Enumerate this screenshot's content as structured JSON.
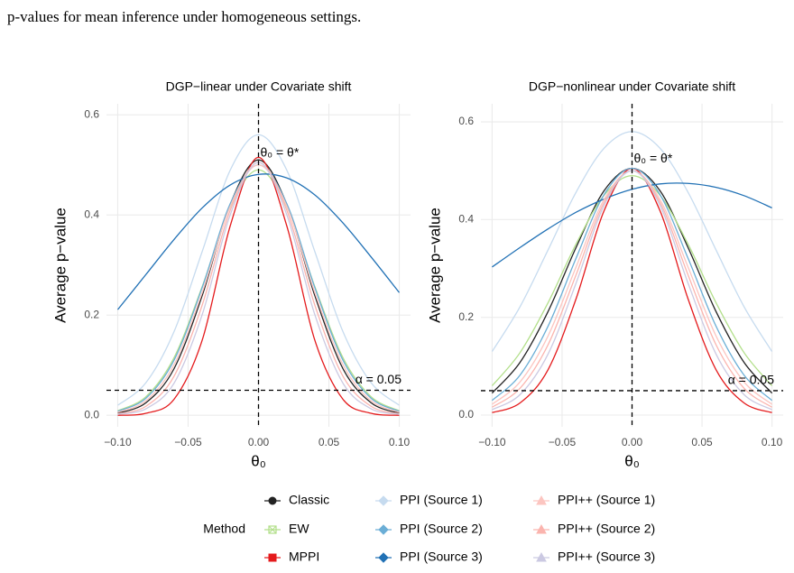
{
  "caption": "p-values for mean inference under homogeneous settings.",
  "legend": {
    "title": "Method",
    "position": "bottom"
  },
  "chart_data": [
    {
      "type": "line",
      "title": "DGP−linear under Covariate shift",
      "x_label": "θ₀",
      "y_label": "Average p−value",
      "x": [
        -0.1,
        -0.08,
        -0.06,
        -0.04,
        -0.02,
        0,
        0.02,
        0.04,
        0.06,
        0.08,
        0.1
      ],
      "xlim": [
        -0.108,
        0.108
      ],
      "ylim": [
        -0.023,
        0.622
      ],
      "xticks": [
        {
          "value": -0.1,
          "label": "−0.10"
        },
        {
          "value": -0.05,
          "label": "−0.05"
        },
        {
          "value": 0,
          "label": "0.00"
        },
        {
          "value": 0.05,
          "label": "0.05"
        },
        {
          "value": 0.1,
          "label": "0.10"
        }
      ],
      "yticks": [
        {
          "value": 0,
          "label": "0.0"
        },
        0.2,
        0.4,
        0.6
      ],
      "grid": true,
      "vline": {
        "value": 0,
        "label": "θ₀ = θ*"
      },
      "hline": {
        "value": 0.05,
        "label": "α = 0.05"
      },
      "series": [
        {
          "name": "Classic",
          "color": "#222222",
          "marker": "circle",
          "values": [
            0.004,
            0.025,
            0.093,
            0.239,
            0.422,
            0.51,
            0.422,
            0.239,
            0.093,
            0.025,
            0.004
          ]
        },
        {
          "name": "EW",
          "color": "#b2df8a",
          "marker": "square-cross",
          "values": [
            0.009,
            0.037,
            0.115,
            0.257,
            0.417,
            0.49,
            0.417,
            0.257,
            0.115,
            0.037,
            0.009
          ]
        },
        {
          "name": "MPPI",
          "color": "#e41a1c",
          "marker": "square",
          "values": [
            0,
            0.004,
            0.032,
            0.15,
            0.379,
            0.515,
            0.379,
            0.15,
            0.032,
            0.004,
            0
          ]
        },
        {
          "name": "PPI (Source 1)",
          "color": "#c6dbef",
          "marker": "diamond",
          "values": [
            0.02,
            0.065,
            0.167,
            0.327,
            0.49,
            0.56,
            0.49,
            0.327,
            0.167,
            0.065,
            0.02
          ]
        },
        {
          "name": "PPI (Source 2)",
          "color": "#6baed6",
          "marker": "diamond",
          "values": [
            0.008,
            0.034,
            0.11,
            0.255,
            0.423,
            0.5,
            0.423,
            0.255,
            0.11,
            0.034,
            0.008
          ]
        },
        {
          "name": "PPI (Source 3)",
          "color": "#2171b5",
          "marker": "diamond",
          "values": [
            0.211,
            0.281,
            0.351,
            0.414,
            0.46,
            0.481,
            0.474,
            0.44,
            0.384,
            0.316,
            0.245
          ]
        },
        {
          "name": "PPI++ (Source 1)",
          "color": "#fcc5c0",
          "marker": "triangle",
          "values": [
            0.006,
            0.029,
            0.101,
            0.245,
            0.418,
            0.5,
            0.418,
            0.245,
            0.101,
            0.029,
            0.006
          ]
        },
        {
          "name": "PPI++ (Source 2)",
          "color": "#fbb4ae",
          "marker": "triangle",
          "values": [
            0.003,
            0.018,
            0.078,
            0.22,
            0.41,
            0.505,
            0.41,
            0.22,
            0.078,
            0.018,
            0.003
          ]
        },
        {
          "name": "PPI++ (Source 3)",
          "color": "#cbc9e2",
          "marker": "triangle",
          "values": [
            0.002,
            0.013,
            0.064,
            0.201,
            0.401,
            0.505,
            0.401,
            0.201,
            0.064,
            0.013,
            0.002
          ]
        }
      ]
    },
    {
      "type": "line",
      "title": "DGP−nonlinear under Covariate shift",
      "x_label": "θ₀",
      "y_label": "Average p−value",
      "x": [
        -0.1,
        -0.08,
        -0.06,
        -0.04,
        -0.02,
        0,
        0.02,
        0.04,
        0.06,
        0.08,
        0.1
      ],
      "xlim": [
        -0.108,
        0.108
      ],
      "ylim": [
        -0.024,
        0.637
      ],
      "xticks": [
        {
          "value": -0.1,
          "label": "−0.10"
        },
        {
          "value": -0.05,
          "label": "−0.05"
        },
        {
          "value": 0,
          "label": "0.00"
        },
        {
          "value": 0.05,
          "label": "0.05"
        },
        {
          "value": 0.1,
          "label": "0.10"
        }
      ],
      "yticks": [
        {
          "value": 0,
          "label": "0.0"
        },
        0.2,
        0.4,
        0.6
      ],
      "grid": true,
      "vline": {
        "value": 0,
        "label": "θ₀ = θ*"
      },
      "hline": {
        "value": 0.05,
        "label": "α = 0.05"
      },
      "series": [
        {
          "color": "#222222",
          "values": [
            0.045,
            0.108,
            0.212,
            0.343,
            0.459,
            0.505,
            0.459,
            0.343,
            0.212,
            0.108,
            0.045
          ]
        },
        {
          "color": "#b2df8a",
          "values": [
            0.06,
            0.128,
            0.23,
            0.35,
            0.45,
            0.49,
            0.45,
            0.35,
            0.23,
            0.128,
            0.06
          ]
        },
        {
          "color": "#e41a1c",
          "values": [
            0.005,
            0.025,
            0.093,
            0.238,
            0.418,
            0.505,
            0.418,
            0.238,
            0.093,
            0.025,
            0.005
          ]
        },
        {
          "color": "#c6dbef",
          "values": [
            0.13,
            0.222,
            0.338,
            0.456,
            0.546,
            0.58,
            0.546,
            0.456,
            0.338,
            0.222,
            0.13
          ]
        },
        {
          "color": "#6baed6",
          "values": [
            0.03,
            0.082,
            0.182,
            0.321,
            0.451,
            0.505,
            0.451,
            0.321,
            0.182,
            0.082,
            0.03
          ]
        },
        {
          "color": "#2171b5",
          "values": [
            0.303,
            0.343,
            0.381,
            0.415,
            0.442,
            0.462,
            0.473,
            0.474,
            0.466,
            0.449,
            0.424
          ]
        },
        {
          "color": "#fcc5c0",
          "values": [
            0.022,
            0.068,
            0.162,
            0.303,
            0.441,
            0.5,
            0.441,
            0.303,
            0.162,
            0.068,
            0.022
          ]
        },
        {
          "color": "#fbb4ae",
          "values": [
            0.016,
            0.055,
            0.144,
            0.287,
            0.435,
            0.5,
            0.435,
            0.287,
            0.144,
            0.055,
            0.016
          ]
        },
        {
          "color": "#cbc9e2",
          "values": [
            0.011,
            0.042,
            0.125,
            0.27,
            0.429,
            0.5,
            0.429,
            0.27,
            0.125,
            0.042,
            0.011
          ]
        }
      ]
    }
  ]
}
